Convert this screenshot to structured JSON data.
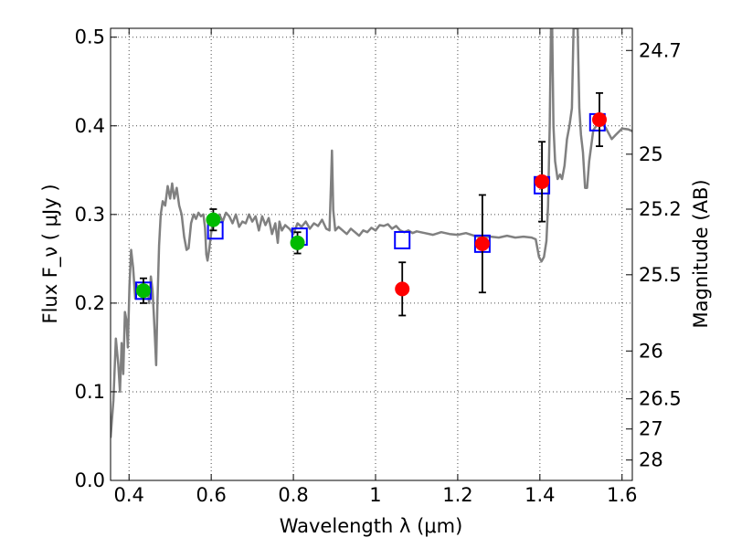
{
  "chart_data": {
    "type": "scatter",
    "xlabel": "Wavelength  λ (μm)",
    "ylabel": "Flux  F_ν  ( μJy )",
    "ylabel_right": "Magnitude (AB)",
    "xlim": [
      0.355,
      1.625
    ],
    "ylim": [
      0.0,
      0.51
    ],
    "grid": true,
    "x_ticks": [
      0.4,
      0.6,
      0.8,
      1.0,
      1.2,
      1.4,
      1.6
    ],
    "x_tick_labels": [
      "0.4",
      "0.6",
      "0.8",
      "1",
      "1.2",
      "1.4",
      "1.6"
    ],
    "y_ticks": [
      0.0,
      0.1,
      0.2,
      0.3,
      0.4,
      0.5
    ],
    "y_tick_labels": [
      "0.0",
      "0.1",
      "0.2",
      "0.3",
      "0.4",
      "0.5"
    ],
    "right_ticks": [
      {
        "flux": 0.485,
        "label": "24.7"
      },
      {
        "flux": 0.368,
        "label": "25"
      },
      {
        "flux": 0.306,
        "label": "25.2"
      },
      {
        "flux": 0.232,
        "label": "25.5"
      },
      {
        "flux": 0.146,
        "label": "26"
      },
      {
        "flux": 0.092,
        "label": "26.5"
      },
      {
        "flux": 0.058,
        "label": "27"
      },
      {
        "flux": 0.023,
        "label": "28"
      }
    ],
    "colors": {
      "model": "#808080",
      "model_photometry": "#0000ff",
      "observed_optical": "#00bb00",
      "observed_nir": "#ff0000",
      "error_bar": "#000000",
      "grid": "#000000"
    },
    "series": [
      {
        "kind": "model_spectrum",
        "points": [
          [
            0.355,
            0.048
          ],
          [
            0.362,
            0.09
          ],
          [
            0.368,
            0.16
          ],
          [
            0.374,
            0.13
          ],
          [
            0.378,
            0.1
          ],
          [
            0.382,
            0.155
          ],
          [
            0.386,
            0.12
          ],
          [
            0.39,
            0.19
          ],
          [
            0.394,
            0.18
          ],
          [
            0.397,
            0.15
          ],
          [
            0.401,
            0.22
          ],
          [
            0.405,
            0.26
          ],
          [
            0.41,
            0.24
          ],
          [
            0.415,
            0.205
          ],
          [
            0.42,
            0.22
          ],
          [
            0.426,
            0.215
          ],
          [
            0.432,
            0.205
          ],
          [
            0.438,
            0.212
          ],
          [
            0.444,
            0.22
          ],
          [
            0.449,
            0.2
          ],
          [
            0.453,
            0.23
          ],
          [
            0.457,
            0.215
          ],
          [
            0.46,
            0.19
          ],
          [
            0.463,
            0.16
          ],
          [
            0.466,
            0.13
          ],
          [
            0.469,
            0.2
          ],
          [
            0.473,
            0.265
          ],
          [
            0.477,
            0.3
          ],
          [
            0.482,
            0.315
          ],
          [
            0.488,
            0.31
          ],
          [
            0.494,
            0.332
          ],
          [
            0.5,
            0.318
          ],
          [
            0.505,
            0.335
          ],
          [
            0.51,
            0.318
          ],
          [
            0.516,
            0.33
          ],
          [
            0.522,
            0.31
          ],
          [
            0.528,
            0.3
          ],
          [
            0.534,
            0.275
          ],
          [
            0.54,
            0.26
          ],
          [
            0.545,
            0.262
          ],
          [
            0.551,
            0.29
          ],
          [
            0.557,
            0.3
          ],
          [
            0.563,
            0.295
          ],
          [
            0.569,
            0.302
          ],
          [
            0.575,
            0.298
          ],
          [
            0.581,
            0.3
          ],
          [
            0.585,
            0.285
          ],
          [
            0.588,
            0.255
          ],
          [
            0.591,
            0.248
          ],
          [
            0.595,
            0.26
          ],
          [
            0.6,
            0.28
          ],
          [
            0.605,
            0.294
          ],
          [
            0.612,
            0.29
          ],
          [
            0.62,
            0.3
          ],
          [
            0.628,
            0.292
          ],
          [
            0.636,
            0.302
          ],
          [
            0.644,
            0.298
          ],
          [
            0.652,
            0.29
          ],
          [
            0.66,
            0.3
          ],
          [
            0.668,
            0.286
          ],
          [
            0.676,
            0.292
          ],
          [
            0.684,
            0.29
          ],
          [
            0.692,
            0.3
          ],
          [
            0.7,
            0.292
          ],
          [
            0.708,
            0.298
          ],
          [
            0.716,
            0.282
          ],
          [
            0.724,
            0.298
          ],
          [
            0.732,
            0.288
          ],
          [
            0.74,
            0.296
          ],
          [
            0.748,
            0.278
          ],
          [
            0.756,
            0.29
          ],
          [
            0.762,
            0.268
          ],
          [
            0.766,
            0.292
          ],
          [
            0.772,
            0.282
          ],
          [
            0.78,
            0.288
          ],
          [
            0.79,
            0.284
          ],
          [
            0.8,
            0.278
          ],
          [
            0.81,
            0.29
          ],
          [
            0.82,
            0.286
          ],
          [
            0.83,
            0.292
          ],
          [
            0.84,
            0.284
          ],
          [
            0.85,
            0.29
          ],
          [
            0.86,
            0.287
          ],
          [
            0.87,
            0.294
          ],
          [
            0.88,
            0.284
          ],
          [
            0.888,
            0.282
          ],
          [
            0.892,
            0.34
          ],
          [
            0.894,
            0.372
          ],
          [
            0.897,
            0.305
          ],
          [
            0.902,
            0.282
          ],
          [
            0.91,
            0.286
          ],
          [
            0.92,
            0.282
          ],
          [
            0.93,
            0.278
          ],
          [
            0.94,
            0.284
          ],
          [
            0.95,
            0.28
          ],
          [
            0.96,
            0.276
          ],
          [
            0.97,
            0.282
          ],
          [
            0.98,
            0.28
          ],
          [
            0.99,
            0.285
          ],
          [
            1.0,
            0.282
          ],
          [
            1.01,
            0.288
          ],
          [
            1.02,
            0.287
          ],
          [
            1.03,
            0.289
          ],
          [
            1.04,
            0.284
          ],
          [
            1.05,
            0.287
          ],
          [
            1.06,
            0.282
          ],
          [
            1.07,
            0.28
          ],
          [
            1.08,
            0.282
          ],
          [
            1.09,
            0.279
          ],
          [
            1.1,
            0.281
          ],
          [
            1.12,
            0.279
          ],
          [
            1.14,
            0.277
          ],
          [
            1.16,
            0.28
          ],
          [
            1.18,
            0.278
          ],
          [
            1.2,
            0.277
          ],
          [
            1.22,
            0.279
          ],
          [
            1.24,
            0.276
          ],
          [
            1.26,
            0.274
          ],
          [
            1.28,
            0.275
          ],
          [
            1.3,
            0.274
          ],
          [
            1.32,
            0.276
          ],
          [
            1.34,
            0.274
          ],
          [
            1.36,
            0.275
          ],
          [
            1.38,
            0.274
          ],
          [
            1.39,
            0.272
          ],
          [
            1.398,
            0.252
          ],
          [
            1.404,
            0.247
          ],
          [
            1.41,
            0.252
          ],
          [
            1.416,
            0.27
          ],
          [
            1.42,
            0.31
          ],
          [
            1.424,
            0.4
          ],
          [
            1.427,
            0.51
          ],
          [
            1.43,
            0.51
          ],
          [
            1.433,
            0.4
          ],
          [
            1.437,
            0.36
          ],
          [
            1.443,
            0.34
          ],
          [
            1.449,
            0.345
          ],
          [
            1.454,
            0.34
          ],
          [
            1.46,
            0.355
          ],
          [
            1.466,
            0.385
          ],
          [
            1.472,
            0.4
          ],
          [
            1.478,
            0.42
          ],
          [
            1.482,
            0.51
          ],
          [
            1.492,
            0.51
          ],
          [
            1.496,
            0.42
          ],
          [
            1.5,
            0.39
          ],
          [
            1.505,
            0.37
          ],
          [
            1.51,
            0.33
          ],
          [
            1.515,
            0.33
          ],
          [
            1.52,
            0.36
          ],
          [
            1.53,
            0.395
          ],
          [
            1.545,
            0.405
          ],
          [
            1.56,
            0.398
          ],
          [
            1.575,
            0.385
          ],
          [
            1.585,
            0.39
          ],
          [
            1.6,
            0.397
          ],
          [
            1.615,
            0.396
          ],
          [
            1.625,
            0.394
          ]
        ]
      },
      {
        "kind": "model_photometry",
        "marker": "square",
        "points": [
          [
            0.435,
            0.214
          ],
          [
            0.61,
            0.282
          ],
          [
            0.815,
            0.275
          ],
          [
            1.065,
            0.271
          ],
          [
            1.26,
            0.267
          ],
          [
            1.405,
            0.333
          ],
          [
            1.54,
            0.404
          ]
        ]
      },
      {
        "kind": "observed_optical",
        "marker": "circle",
        "points": [
          {
            "x": 0.435,
            "y": 0.214,
            "err": 0.014
          },
          {
            "x": 0.605,
            "y": 0.294,
            "err": 0.012
          },
          {
            "x": 0.81,
            "y": 0.268,
            "err": 0.012
          }
        ]
      },
      {
        "kind": "observed_nir",
        "marker": "circle",
        "points": [
          {
            "x": 1.065,
            "y": 0.216,
            "err": 0.03
          },
          {
            "x": 1.26,
            "y": 0.267,
            "err": 0.055
          },
          {
            "x": 1.405,
            "y": 0.337,
            "err": 0.045
          },
          {
            "x": 1.545,
            "y": 0.407,
            "err": 0.03
          }
        ]
      }
    ]
  }
}
